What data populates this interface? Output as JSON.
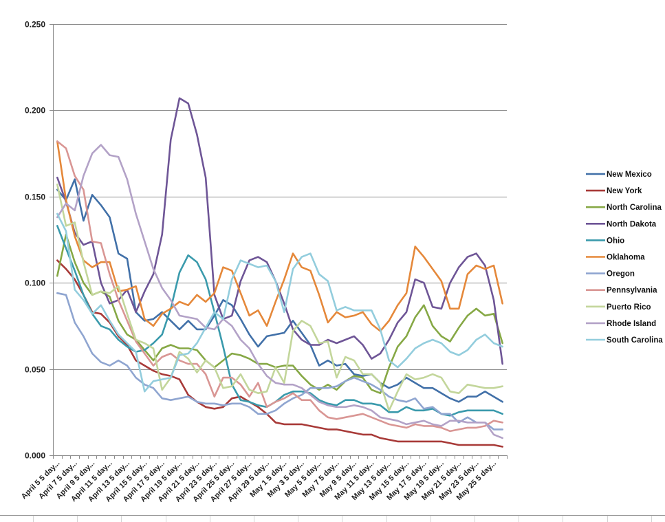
{
  "chart_data": {
    "type": "line",
    "title": "",
    "xlabel": "",
    "ylabel": "",
    "ylim": [
      0,
      0.25
    ],
    "y_ticks": [
      "0.000",
      "0.050",
      "0.100",
      "0.150",
      "0.200",
      "0.250"
    ],
    "grid": "horizontal",
    "legend_position": "right",
    "x_tick_labels": [
      "April 5 5 day...",
      "April 7 5 day...",
      "April 9 5 day...",
      "April 11 5 day...",
      "April 13 5 day...",
      "April 15 5 day...",
      "April 17 5 day...",
      "April 19 5 day...",
      "April 21 5 day...",
      "April 23 5 day...",
      "April 25 5 day...",
      "April 27 5 day...",
      "April 29 5 day...",
      "May 1 5 day...",
      "May 3 5 day...",
      "May 5 5 day...",
      "May 7 5 day...",
      "May 9 5 day...",
      "May 11 5 day...",
      "May 13 5 day...",
      "May 15 5 day...",
      "May 17 5 day...",
      "May 19 5 day...",
      "May 21 5 day...",
      "May 23 5 day...",
      "May 25 5 day..."
    ],
    "series": [
      {
        "name": "New Mexico",
        "color": "#4170a8",
        "values": [
          0.154,
          0.148,
          0.16,
          0.136,
          0.151,
          0.145,
          0.138,
          0.117,
          0.114,
          0.083,
          0.078,
          0.079,
          0.083,
          0.078,
          0.073,
          0.078,
          0.073,
          0.073,
          0.081,
          0.09,
          0.087,
          0.079,
          0.07,
          0.063,
          0.069,
          0.07,
          0.071,
          0.078,
          0.071,
          0.064,
          0.052,
          0.055,
          0.052,
          0.053,
          0.047,
          0.046,
          0.047,
          0.042,
          0.039,
          0.041,
          0.045,
          0.042,
          0.039,
          0.039,
          0.036,
          0.033,
          0.031,
          0.034,
          0.034,
          0.037,
          0.034,
          0.031
        ]
      },
      {
        "name": "New York",
        "color": "#a83a38",
        "values": [
          0.113,
          0.108,
          0.102,
          0.093,
          0.083,
          0.082,
          0.077,
          0.069,
          0.064,
          0.055,
          0.052,
          0.049,
          0.047,
          0.046,
          0.044,
          0.035,
          0.031,
          0.028,
          0.027,
          0.028,
          0.033,
          0.034,
          0.031,
          0.028,
          0.024,
          0.019,
          0.018,
          0.018,
          0.018,
          0.017,
          0.016,
          0.015,
          0.015,
          0.014,
          0.013,
          0.012,
          0.012,
          0.01,
          0.009,
          0.008,
          0.008,
          0.008,
          0.008,
          0.008,
          0.008,
          0.007,
          0.006,
          0.006,
          0.006,
          0.006,
          0.006,
          0.005
        ]
      },
      {
        "name": "North Carolina",
        "color": "#86a845",
        "values": [
          0.104,
          0.128,
          0.112,
          0.1,
          0.093,
          0.095,
          0.092,
          0.078,
          0.07,
          0.067,
          0.061,
          0.055,
          0.062,
          0.064,
          0.062,
          0.062,
          0.061,
          0.055,
          0.051,
          0.055,
          0.059,
          0.058,
          0.056,
          0.053,
          0.053,
          0.051,
          0.052,
          0.052,
          0.046,
          0.041,
          0.038,
          0.041,
          0.038,
          0.043,
          0.046,
          0.045,
          0.038,
          0.036,
          0.051,
          0.063,
          0.069,
          0.08,
          0.087,
          0.075,
          0.069,
          0.066,
          0.074,
          0.081,
          0.085,
          0.081,
          0.082,
          0.065
        ]
      },
      {
        "name": "North Dakota",
        "color": "#6e5596",
        "values": [
          0.161,
          0.147,
          0.129,
          0.122,
          0.124,
          0.1,
          0.088,
          0.09,
          0.096,
          0.083,
          0.095,
          0.105,
          0.128,
          0.183,
          0.207,
          0.204,
          0.186,
          0.161,
          0.093,
          0.079,
          0.081,
          0.101,
          0.113,
          0.115,
          0.112,
          0.101,
          0.088,
          0.073,
          0.067,
          0.064,
          0.064,
          0.067,
          0.065,
          0.067,
          0.069,
          0.064,
          0.056,
          0.059,
          0.067,
          0.077,
          0.083,
          0.102,
          0.1,
          0.086,
          0.085,
          0.1,
          0.109,
          0.115,
          0.117,
          0.11,
          0.09,
          0.053
        ]
      },
      {
        "name": "Ohio",
        "color": "#3a9aac",
        "values": [
          0.133,
          0.12,
          0.107,
          0.093,
          0.082,
          0.075,
          0.073,
          0.067,
          0.063,
          0.06,
          0.061,
          0.065,
          0.07,
          0.085,
          0.106,
          0.116,
          0.112,
          0.102,
          0.083,
          0.063,
          0.041,
          0.032,
          0.031,
          0.029,
          0.028,
          0.031,
          0.035,
          0.037,
          0.037,
          0.036,
          0.032,
          0.03,
          0.029,
          0.032,
          0.032,
          0.03,
          0.03,
          0.029,
          0.025,
          0.025,
          0.028,
          0.026,
          0.026,
          0.027,
          0.024,
          0.023,
          0.025,
          0.026,
          0.026,
          0.026,
          0.026,
          0.024
        ]
      },
      {
        "name": "Oklahoma",
        "color": "#e5883a",
        "values": [
          0.182,
          0.148,
          0.127,
          0.113,
          0.109,
          0.112,
          0.112,
          0.095,
          0.096,
          0.098,
          0.079,
          0.075,
          0.082,
          0.085,
          0.089,
          0.087,
          0.093,
          0.089,
          0.094,
          0.109,
          0.107,
          0.094,
          0.081,
          0.084,
          0.075,
          0.089,
          0.102,
          0.117,
          0.109,
          0.107,
          0.093,
          0.077,
          0.083,
          0.08,
          0.081,
          0.083,
          0.076,
          0.072,
          0.078,
          0.087,
          0.094,
          0.121,
          0.115,
          0.108,
          0.101,
          0.085,
          0.085,
          0.105,
          0.11,
          0.108,
          0.11,
          0.088
        ]
      },
      {
        "name": "Oregon",
        "color": "#8fa5d0",
        "values": [
          0.094,
          0.093,
          0.077,
          0.069,
          0.059,
          0.054,
          0.052,
          0.055,
          0.052,
          0.045,
          0.041,
          0.039,
          0.033,
          0.032,
          0.033,
          0.034,
          0.031,
          0.03,
          0.03,
          0.029,
          0.03,
          0.03,
          0.028,
          0.024,
          0.024,
          0.026,
          0.03,
          0.033,
          0.035,
          0.039,
          0.039,
          0.039,
          0.04,
          0.043,
          0.045,
          0.043,
          0.041,
          0.038,
          0.034,
          0.032,
          0.031,
          0.033,
          0.027,
          0.028,
          0.024,
          0.024,
          0.019,
          0.022,
          0.019,
          0.019,
          0.015,
          0.015
        ]
      },
      {
        "name": "Pennsylvania",
        "color": "#d99694",
        "values": [
          0.182,
          0.178,
          0.162,
          0.154,
          0.124,
          0.123,
          0.105,
          0.09,
          0.078,
          0.066,
          0.059,
          0.052,
          0.057,
          0.059,
          0.055,
          0.053,
          0.053,
          0.047,
          0.034,
          0.045,
          0.045,
          0.041,
          0.034,
          0.042,
          0.028,
          0.031,
          0.033,
          0.036,
          0.032,
          0.032,
          0.026,
          0.022,
          0.021,
          0.022,
          0.023,
          0.024,
          0.022,
          0.02,
          0.018,
          0.017,
          0.016,
          0.018,
          0.017,
          0.017,
          0.016,
          0.014,
          0.015,
          0.016,
          0.016,
          0.017,
          0.02,
          0.019
        ]
      },
      {
        "name": "Puerto Rico",
        "color": "#c3d69b",
        "values": [
          0.157,
          0.133,
          0.135,
          0.112,
          0.093,
          0.095,
          0.094,
          0.098,
          0.082,
          0.067,
          0.065,
          0.062,
          0.038,
          0.045,
          0.06,
          0.056,
          0.048,
          0.055,
          0.051,
          0.039,
          0.04,
          0.047,
          0.038,
          0.036,
          0.037,
          0.051,
          0.042,
          0.072,
          0.078,
          0.075,
          0.065,
          0.066,
          0.045,
          0.057,
          0.055,
          0.047,
          0.047,
          0.042,
          0.026,
          0.037,
          0.047,
          0.044,
          0.045,
          0.047,
          0.045,
          0.037,
          0.036,
          0.041,
          0.04,
          0.039,
          0.039,
          0.04
        ]
      },
      {
        "name": "Rhode Island",
        "color": "#b3a2c7",
        "values": [
          0.138,
          0.146,
          0.142,
          0.162,
          0.175,
          0.18,
          0.174,
          0.173,
          0.16,
          0.14,
          0.124,
          0.108,
          0.097,
          0.09,
          0.081,
          0.08,
          0.079,
          0.074,
          0.073,
          0.079,
          0.075,
          0.067,
          0.062,
          0.053,
          0.046,
          0.042,
          0.041,
          0.041,
          0.039,
          0.035,
          0.031,
          0.029,
          0.028,
          0.028,
          0.029,
          0.028,
          0.026,
          0.022,
          0.021,
          0.02,
          0.018,
          0.019,
          0.02,
          0.018,
          0.017,
          0.02,
          0.02,
          0.019,
          0.019,
          0.019,
          0.012,
          0.01
        ]
      },
      {
        "name": "South Carolina",
        "color": "#93cddd",
        "values": [
          0.14,
          0.13,
          0.096,
          0.09,
          0.082,
          0.087,
          0.078,
          0.07,
          0.065,
          0.06,
          0.037,
          0.043,
          0.044,
          0.045,
          0.058,
          0.059,
          0.065,
          0.074,
          0.083,
          0.079,
          0.102,
          0.113,
          0.111,
          0.109,
          0.11,
          0.101,
          0.083,
          0.108,
          0.115,
          0.117,
          0.105,
          0.101,
          0.084,
          0.086,
          0.084,
          0.084,
          0.084,
          0.073,
          0.055,
          0.051,
          0.056,
          0.062,
          0.065,
          0.067,
          0.065,
          0.06,
          0.058,
          0.061,
          0.067,
          0.07,
          0.065,
          0.063
        ]
      }
    ]
  }
}
